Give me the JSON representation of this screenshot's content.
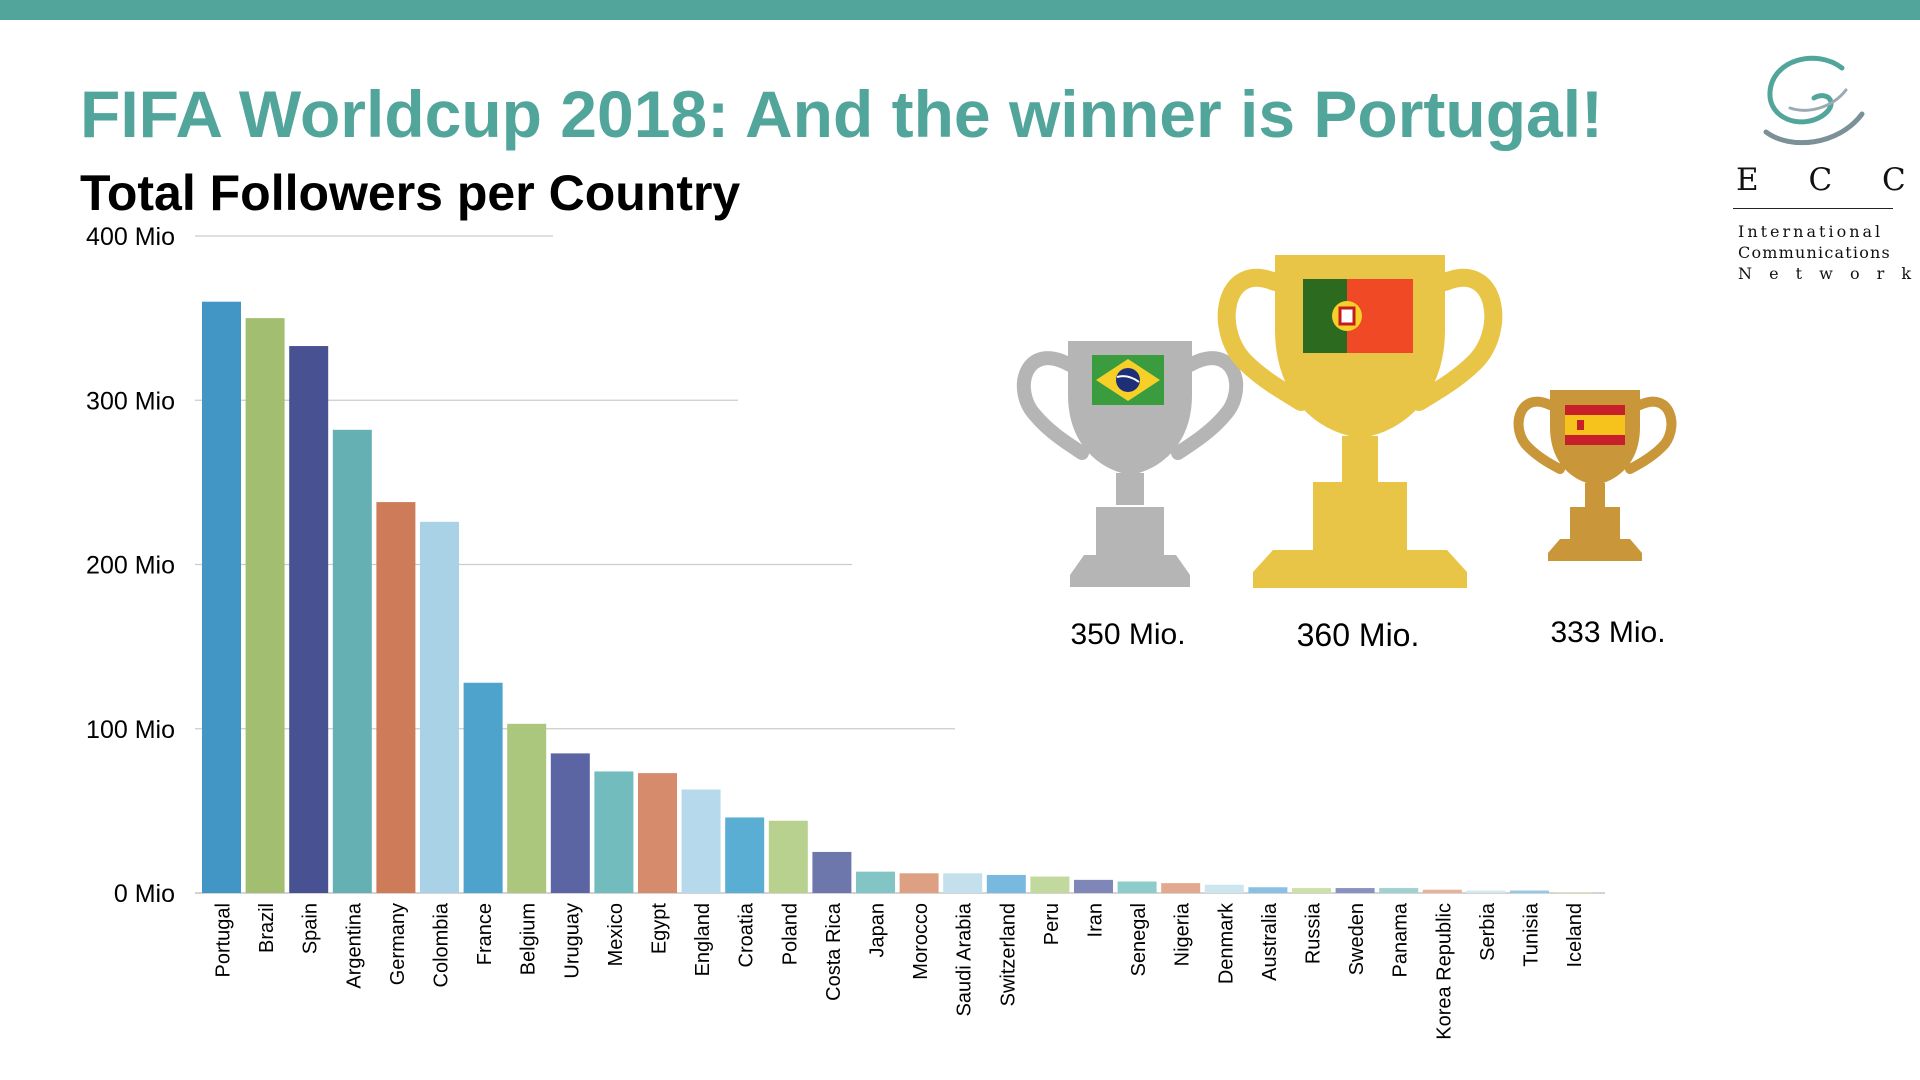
{
  "header": {
    "title": "FIFA Worldcup 2018: And the winner is Portugal!",
    "brand_color": "#52a59b"
  },
  "logo": {
    "wordmark": "E C C O",
    "tagline_1": "International",
    "tagline_2": "Communications",
    "tagline_3": "N e t w o r k"
  },
  "trophies": [
    {
      "place": "second",
      "country": "Brazil",
      "value_label": "350 Mio.",
      "color": "#b5b5b5",
      "flag": "brazil-flag-icon"
    },
    {
      "place": "first",
      "country": "Portugal",
      "value_label": "360 Mio.",
      "color": "#e8c547",
      "flag": "portugal-flag-icon"
    },
    {
      "place": "third",
      "country": "Spain",
      "value_label": "333 Mio.",
      "color": "#c9963a",
      "flag": "spain-flag-icon"
    }
  ],
  "chart_data": {
    "type": "bar",
    "title": "Total Followers per Country",
    "ylim": [
      0,
      400
    ],
    "yticks": [
      0,
      100,
      200,
      300,
      400
    ],
    "ytick_labels": [
      "0 Mio",
      "100 Mio",
      "200 Mio",
      "300 Mio",
      "400 Mio"
    ],
    "grid": true,
    "categories": [
      "Portugal",
      "Brazil",
      "Spain",
      "Argentina",
      "Germany",
      "Colombia",
      "France",
      "Belgium",
      "Uruguay",
      "Mexico",
      "Egypt",
      "England",
      "Croatia",
      "Poland",
      "Costa Rica",
      "Japan",
      "Morocco",
      "Saudi Arabia",
      "Switzerland",
      "Peru",
      "Iran",
      "Senegal",
      "Nigeria",
      "Denmark",
      "Australia",
      "Russia",
      "Sweden",
      "Panama",
      "Korea Republic",
      "Serbia",
      "Tunisia",
      "Iceland"
    ],
    "values": [
      360,
      350,
      333,
      282,
      238,
      226,
      128,
      103,
      85,
      74,
      73,
      63,
      46,
      44,
      25,
      13,
      12,
      12,
      11,
      10,
      8,
      7,
      6,
      5,
      3.5,
      3,
      3,
      3,
      2,
      1.5,
      1.5,
      0.5
    ],
    "colors": [
      "#4296c6",
      "#a2bf71",
      "#485293",
      "#64b0b2",
      "#cd7b58",
      "#a9d2e6",
      "#4da3cc",
      "#abc67d",
      "#5c65a3",
      "#72bcbd",
      "#d68c6c",
      "#b6daeb",
      "#5aaed4",
      "#b9d18f",
      "#6e77ab",
      "#83c4c4",
      "#dea083",
      "#c3e0ec",
      "#79b9df",
      "#c2d99d",
      "#7f86b8",
      "#8ecccb",
      "#e2a98e",
      "#cde5ef",
      "#88c1e2",
      "#cce0a7",
      "#8a90c0",
      "#9dd2d1",
      "#e6b39a",
      "#d5e9f1",
      "#94c8e5",
      "#d3e4b1"
    ]
  }
}
